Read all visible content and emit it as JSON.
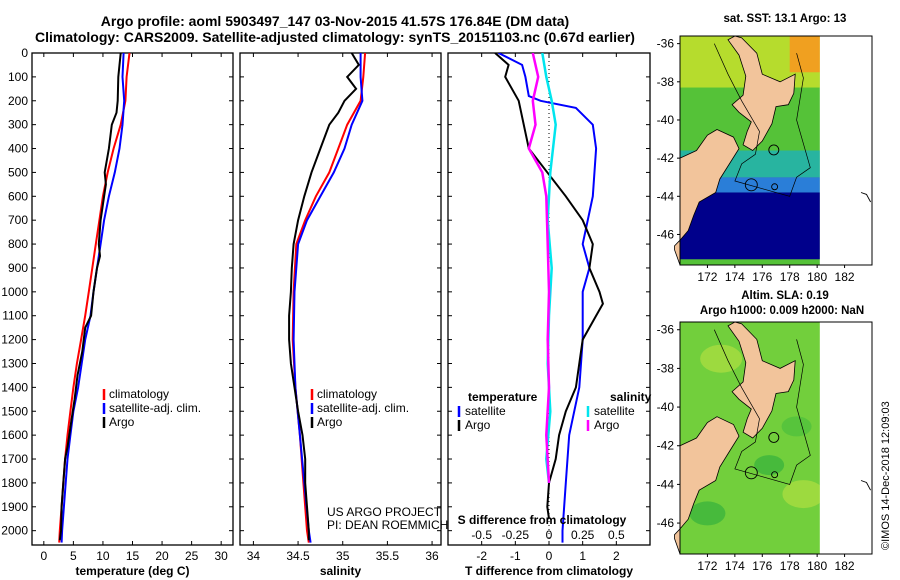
{
  "header": {
    "line1": "Argo profile: aoml 5903497_147 03-Nov-2015 41.57S 176.84E (DM data)",
    "line2": "Climatology: CARS2009. Satellite-adjusted climatology: synTS_20151103.nc (0.67d earlier)"
  },
  "credits": {
    "project": "US ARGO PROJECT",
    "pi": "PI: DEAN ROEMMICH",
    "imos": "©IMOS 14-Dec-2018 12:09:03"
  },
  "colors": {
    "climatology": "#ff0000",
    "satellite": "#0000ff",
    "argo": "#000000",
    "salinity_sat": "#00e5ee",
    "salinity_clim": "#ff00ff",
    "land": "#f2c49b",
    "deep_sea": "#00008b"
  },
  "maps": {
    "sst": {
      "title": "sat. SST: 13.1 Argo: 13"
    },
    "sla": {
      "title1": "Altim. SLA: 0.19",
      "title2": "Argo h1000: 0.009 h2000: NaN"
    },
    "xticks": [
      "172",
      "174",
      "176",
      "178",
      "180",
      "182"
    ],
    "yticks": [
      "-36",
      "-38",
      "-40",
      "-42",
      "-44",
      "-46"
    ]
  },
  "chart_data": [
    {
      "type": "line",
      "xlabel": "temperature (deg C)",
      "ylabel": "",
      "xlim": [
        -2,
        32
      ],
      "ylim": [
        2060,
        0
      ],
      "xticks": [
        "0",
        "5",
        "10",
        "15",
        "20",
        "25",
        "30"
      ],
      "yticks": [
        "0",
        "100",
        "200",
        "300",
        "400",
        "500",
        "600",
        "700",
        "800",
        "900",
        "1000",
        "1100",
        "1200",
        "1300",
        "1400",
        "1500",
        "1600",
        "1700",
        "1800",
        "1900",
        "2000"
      ],
      "legend": [
        "climatology",
        "satellite-adj. clim.",
        "Argo"
      ],
      "series": [
        {
          "name": "climatology",
          "points": [
            [
              14.5,
              0
            ],
            [
              14,
              100
            ],
            [
              13.8,
              200
            ],
            [
              13,
              300
            ],
            [
              11.8,
              400
            ],
            [
              10.8,
              500
            ],
            [
              10,
              600
            ],
            [
              9.4,
              700
            ],
            [
              8.8,
              800
            ],
            [
              8.2,
              900
            ],
            [
              7.6,
              1000
            ],
            [
              7,
              1100
            ],
            [
              6.3,
              1200
            ],
            [
              5.6,
              1300
            ],
            [
              5,
              1400
            ],
            [
              4.5,
              1500
            ],
            [
              4,
              1600
            ],
            [
              3.6,
              1700
            ],
            [
              3.3,
              1800
            ],
            [
              3,
              1900
            ],
            [
              2.7,
              2000
            ],
            [
              2.6,
              2050
            ]
          ]
        },
        {
          "name": "satellite-adj. clim.",
          "points": [
            [
              13.5,
              0
            ],
            [
              13.3,
              100
            ],
            [
              13.6,
              200
            ],
            [
              13.3,
              300
            ],
            [
              12.8,
              400
            ],
            [
              12,
              500
            ],
            [
              11,
              600
            ],
            [
              10.2,
              700
            ],
            [
              9.6,
              800
            ],
            [
              9,
              900
            ],
            [
              8.4,
              1000
            ],
            [
              7.9,
              1100
            ],
            [
              7,
              1200
            ],
            [
              6.4,
              1300
            ],
            [
              5.8,
              1400
            ],
            [
              5,
              1500
            ],
            [
              4.5,
              1600
            ],
            [
              4,
              1700
            ],
            [
              3.7,
              1800
            ],
            [
              3.4,
              1900
            ],
            [
              3.1,
              2000
            ],
            [
              3,
              2050
            ]
          ]
        },
        {
          "name": "Argo",
          "points": [
            [
              13,
              0
            ],
            [
              12.6,
              100
            ],
            [
              12.5,
              200
            ],
            [
              12.3,
              250
            ],
            [
              11.5,
              300
            ],
            [
              11,
              400
            ],
            [
              10.3,
              500
            ],
            [
              10.5,
              550
            ],
            [
              10.2,
              600
            ],
            [
              9.6,
              700
            ],
            [
              9.3,
              800
            ],
            [
              9.5,
              850
            ],
            [
              9,
              900
            ],
            [
              8.4,
              1000
            ],
            [
              8,
              1100
            ],
            [
              7,
              1150
            ],
            [
              6.5,
              1250
            ],
            [
              5.7,
              1350
            ],
            [
              5.2,
              1450
            ],
            [
              4.6,
              1550
            ],
            [
              4,
              1650
            ],
            [
              3.6,
              1700
            ],
            [
              3.3,
              1800
            ],
            [
              3,
              1900
            ],
            [
              2.9,
              2000
            ],
            [
              2.7,
              2040
            ]
          ]
        }
      ]
    },
    {
      "type": "line",
      "xlabel": "salinity",
      "ylabel": "",
      "xlim": [
        33.85,
        36.1
      ],
      "ylim": [
        2060,
        0
      ],
      "xticks": [
        "34",
        "34.5",
        "35",
        "35.5",
        "36"
      ],
      "legend": [
        "climatology",
        "satellite-adj. clim.",
        "Argo"
      ],
      "series": [
        {
          "name": "climatology",
          "points": [
            [
              35.25,
              0
            ],
            [
              35.23,
              100
            ],
            [
              35.2,
              200
            ],
            [
              35.05,
              300
            ],
            [
              34.95,
              400
            ],
            [
              34.85,
              500
            ],
            [
              34.7,
              600
            ],
            [
              34.58,
              700
            ],
            [
              34.48,
              800
            ],
            [
              34.45,
              1000
            ],
            [
              34.44,
              1200
            ],
            [
              34.47,
              1400
            ],
            [
              34.52,
              1600
            ],
            [
              34.56,
              1800
            ],
            [
              34.6,
              2000
            ],
            [
              34.62,
              2050
            ]
          ]
        },
        {
          "name": "satellite-adj. clim.",
          "points": [
            [
              35.2,
              0
            ],
            [
              35.2,
              100
            ],
            [
              35.22,
              200
            ],
            [
              35.1,
              300
            ],
            [
              35.02,
              400
            ],
            [
              34.9,
              500
            ],
            [
              34.75,
              600
            ],
            [
              34.6,
              700
            ],
            [
              34.5,
              800
            ],
            [
              34.46,
              1000
            ],
            [
              34.45,
              1200
            ],
            [
              34.47,
              1400
            ],
            [
              34.52,
              1600
            ],
            [
              34.57,
              1800
            ],
            [
              34.62,
              2000
            ],
            [
              34.64,
              2050
            ]
          ]
        },
        {
          "name": "Argo",
          "points": [
            [
              35.1,
              0
            ],
            [
              35.18,
              50
            ],
            [
              35.05,
              100
            ],
            [
              35.15,
              150
            ],
            [
              35.02,
              200
            ],
            [
              34.95,
              250
            ],
            [
              34.85,
              300
            ],
            [
              34.75,
              400
            ],
            [
              34.65,
              500
            ],
            [
              34.57,
              600
            ],
            [
              34.5,
              700
            ],
            [
              34.45,
              800
            ],
            [
              34.43,
              900
            ],
            [
              34.42,
              1000
            ],
            [
              34.4,
              1100
            ],
            [
              34.4,
              1200
            ],
            [
              34.42,
              1300
            ],
            [
              34.46,
              1400
            ],
            [
              34.5,
              1500
            ],
            [
              34.55,
              1600
            ],
            [
              34.58,
              1700
            ],
            [
              34.58,
              1800
            ],
            [
              34.6,
              1900
            ],
            [
              34.62,
              2000
            ],
            [
              34.62,
              2040
            ]
          ]
        }
      ]
    },
    {
      "type": "line",
      "xlabel": "T difference from climatology",
      "ylabel": "",
      "xlim": [
        -3,
        3
      ],
      "ylim": [
        2060,
        0
      ],
      "xticks": [
        "-2",
        "-1",
        "0",
        "1",
        "2"
      ],
      "secondary_axis": {
        "label": "S difference from climatology",
        "ticks": [
          "-0.5",
          "-0.25",
          "0",
          "0.25",
          "0.5"
        ]
      },
      "legend_temperature": {
        "title": "temperature",
        "items": [
          "satellite",
          "Argo"
        ]
      },
      "legend_salinity": {
        "title": "salinity",
        "items": [
          "satellite",
          "Argo"
        ]
      },
      "series": [
        {
          "name": "temperature satellite",
          "points": [
            [
              -1.5,
              0
            ],
            [
              -0.8,
              50
            ],
            [
              -0.7,
              100
            ],
            [
              -0.6,
              180
            ],
            [
              -0.25,
              200
            ],
            [
              0.8,
              230
            ],
            [
              1.3,
              300
            ],
            [
              1.4,
              400
            ],
            [
              1.3,
              600
            ],
            [
              1.0,
              800
            ],
            [
              1.2,
              900
            ],
            [
              1.0,
              1000
            ],
            [
              1.0,
              1200
            ],
            [
              0.9,
              1400
            ],
            [
              0.6,
              1600
            ],
            [
              0.5,
              1800
            ],
            [
              0.4,
              2000
            ],
            [
              0.4,
              2050
            ]
          ]
        },
        {
          "name": "temperature Argo",
          "points": [
            [
              -1.6,
              0
            ],
            [
              -1.2,
              50
            ],
            [
              -1.3,
              100
            ],
            [
              -0.9,
              200
            ],
            [
              -0.6,
              400
            ],
            [
              0.5,
              600
            ],
            [
              1.0,
              700
            ],
            [
              1.3,
              800
            ],
            [
              1.2,
              900
            ],
            [
              1.5,
              1000
            ],
            [
              1.6,
              1050
            ],
            [
              1.4,
              1100
            ],
            [
              1.0,
              1200
            ],
            [
              0.9,
              1300
            ],
            [
              0.8,
              1400
            ],
            [
              0.5,
              1500
            ],
            [
              0.3,
              1600
            ],
            [
              0.2,
              1700
            ],
            [
              0,
              1800
            ],
            [
              -0.05,
              1900
            ],
            [
              0,
              1950
            ]
          ]
        },
        {
          "name": "salinity satellite",
          "points": [
            [
              -0.05,
              0
            ],
            [
              -0.02,
              100
            ],
            [
              0.02,
              200
            ],
            [
              0.05,
              300
            ],
            [
              0.03,
              400
            ],
            [
              0.01,
              500
            ],
            [
              -0.01,
              700
            ],
            [
              0.02,
              900
            ],
            [
              0,
              1100
            ],
            [
              -0.01,
              1300
            ],
            [
              0.01,
              1500
            ],
            [
              -0.02,
              1700
            ],
            [
              0,
              1800
            ]
          ]
        },
        {
          "name": "salinity Argo",
          "points": [
            [
              -0.12,
              0
            ],
            [
              -0.08,
              100
            ],
            [
              -0.12,
              200
            ],
            [
              -0.1,
              300
            ],
            [
              -0.15,
              400
            ],
            [
              -0.05,
              500
            ],
            [
              -0.02,
              600
            ],
            [
              -0.01,
              800
            ],
            [
              0,
              1000
            ],
            [
              -0.01,
              1200
            ],
            [
              0,
              1400
            ],
            [
              -0.02,
              1600
            ],
            [
              0,
              1800
            ]
          ]
        }
      ]
    }
  ]
}
